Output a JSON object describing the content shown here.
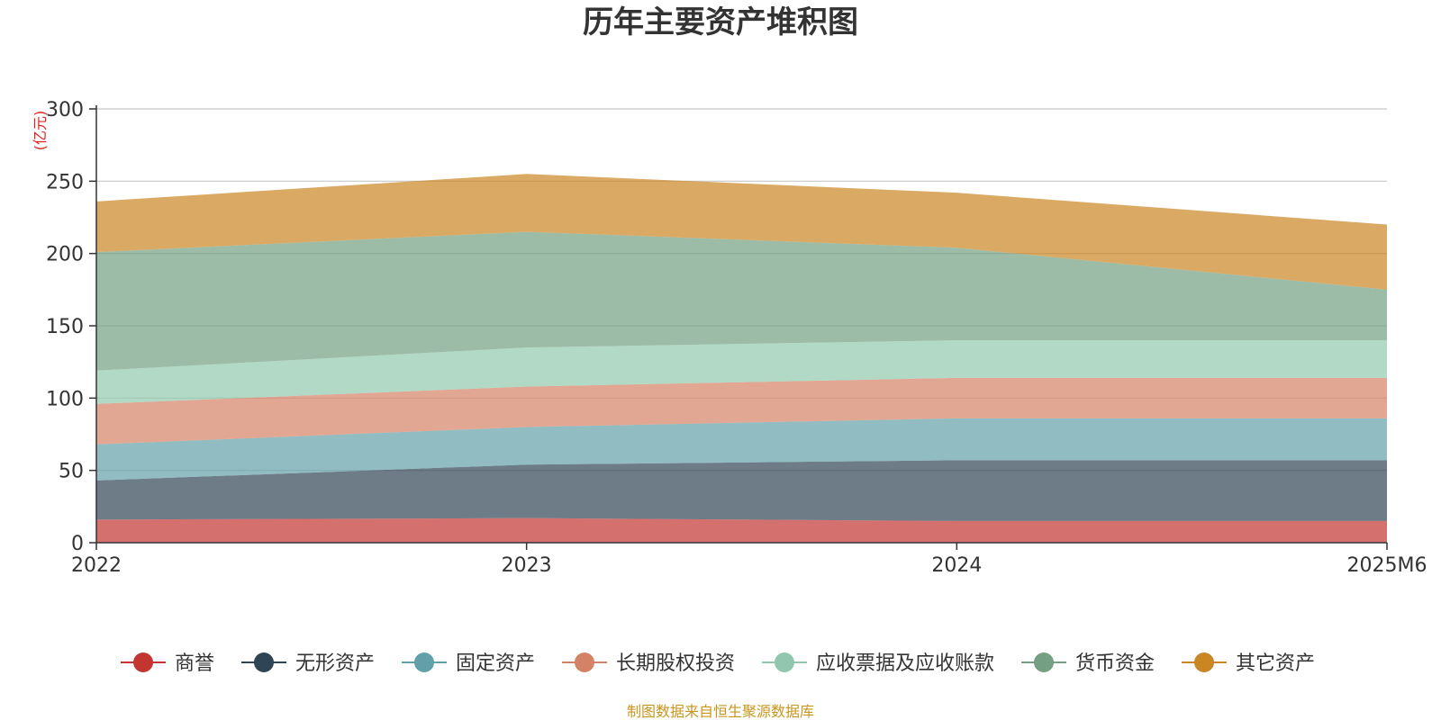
{
  "chart_data": {
    "type": "area",
    "stacked": true,
    "title": "历年主要资产堆积图",
    "ylabel": "(亿元)",
    "xlabel": "",
    "categories": [
      "2022",
      "2023",
      "2024",
      "2025M6"
    ],
    "ylim": [
      0,
      300
    ],
    "yticks": [
      0,
      50,
      100,
      150,
      200,
      250,
      300
    ],
    "grid": true,
    "legend_position": "bottom",
    "series": [
      {
        "name": "商誉",
        "values": [
          16,
          17,
          15,
          15
        ],
        "color": "#c23531"
      },
      {
        "name": "无形资产",
        "values": [
          27,
          37,
          42,
          42
        ],
        "color": "#2f4554"
      },
      {
        "name": "固定资产",
        "values": [
          25,
          26,
          29,
          29
        ],
        "color": "#61a0a8"
      },
      {
        "name": "长期股权投资",
        "values": [
          28,
          28,
          28,
          28
        ],
        "color": "#d48265"
      },
      {
        "name": "应收票据及应收账款",
        "values": [
          23,
          27,
          26,
          26
        ],
        "color": "#91c7ae"
      },
      {
        "name": "货币资金",
        "values": [
          82,
          80,
          64,
          35
        ],
        "color": "#749f83"
      },
      {
        "name": "其它资产",
        "values": [
          35,
          40,
          38,
          45
        ],
        "color": "#ca8622"
      }
    ]
  },
  "source_note": "制图数据来自恒生聚源数据库"
}
